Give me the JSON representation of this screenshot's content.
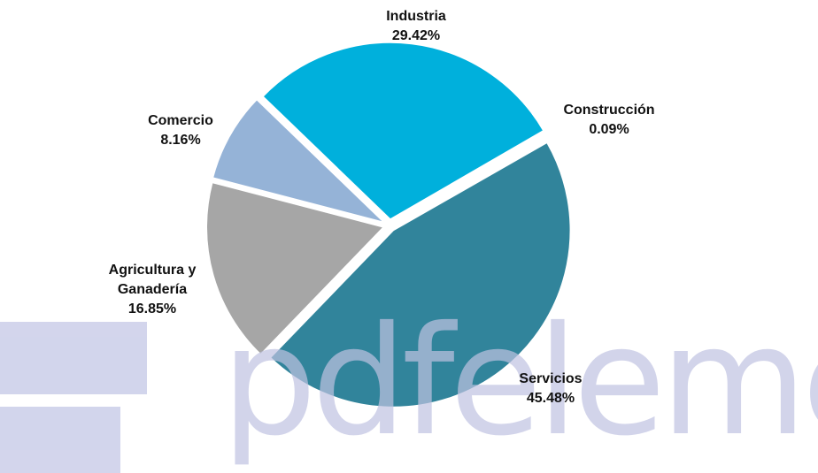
{
  "chart_data": {
    "type": "pie",
    "categories": [
      "Industria",
      "Construcción",
      "Servicios",
      "Agricultura y Ganadería",
      "Comercio"
    ],
    "values": [
      29.42,
      0.09,
      45.48,
      16.85,
      8.16
    ],
    "value_labels": [
      "29.42%",
      "0.09%",
      "45.48%",
      "16.85%",
      "8.16%"
    ],
    "colors": [
      "#00b0dc",
      "#c3cbd9",
      "#31849b",
      "#a6a6a6",
      "#95b3d7"
    ]
  },
  "watermark": "pdfelement"
}
